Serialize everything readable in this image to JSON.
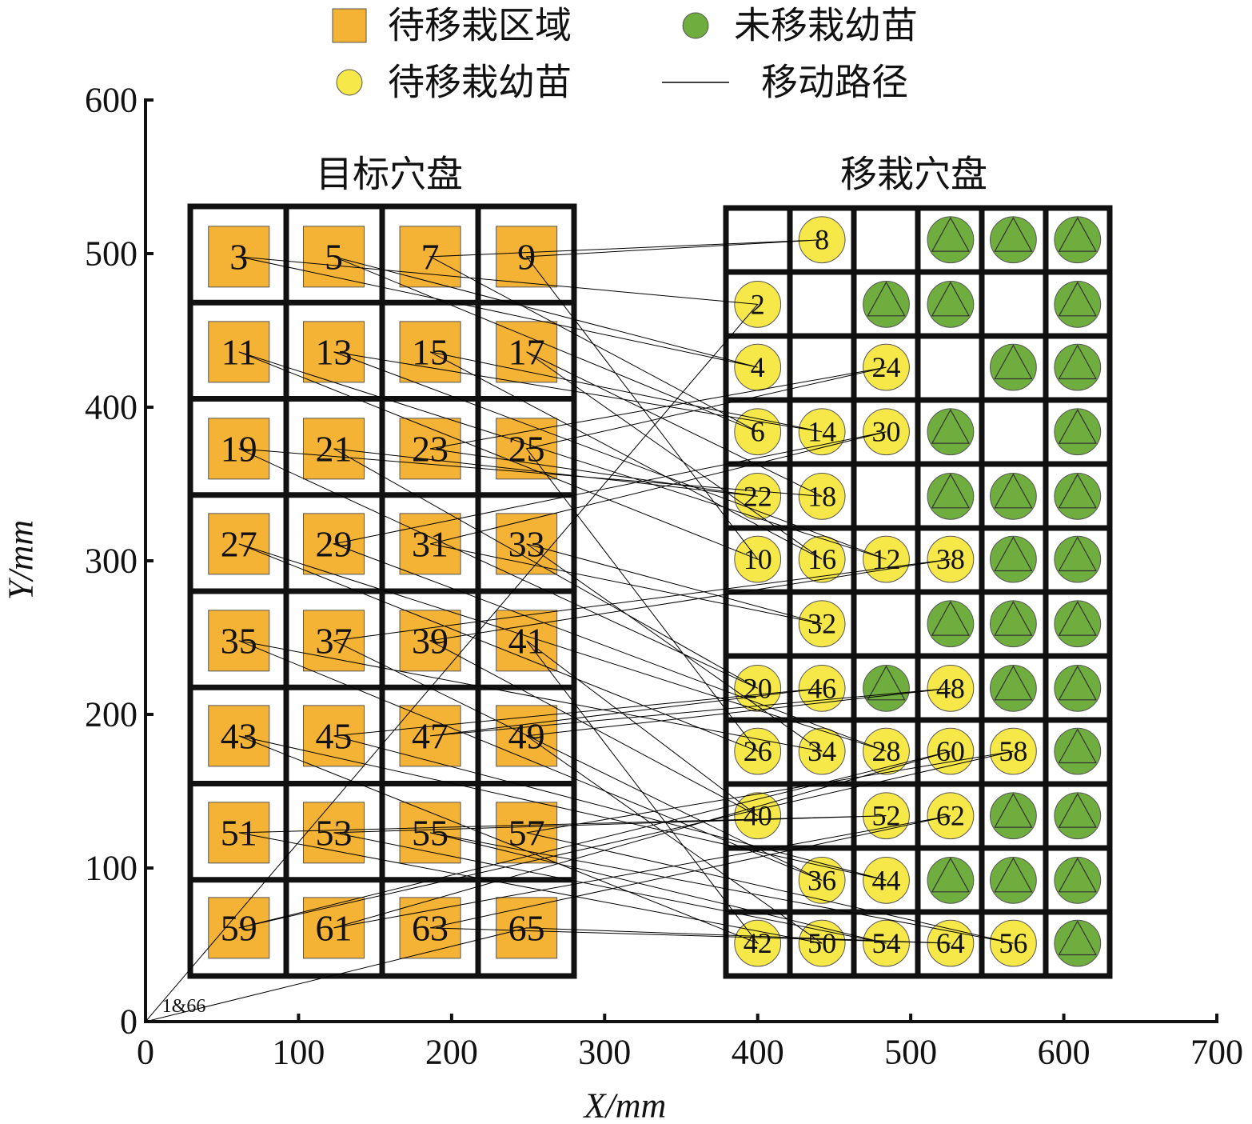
{
  "chart_data": {
    "type": "scatter",
    "xlabel": "X/mm",
    "ylabel": "Y/mm",
    "xlim": [
      0,
      700
    ],
    "xticks": [
      0,
      100,
      200,
      300,
      400,
      500,
      600,
      700
    ],
    "ylim": [
      0,
      600
    ],
    "yticks": [
      0,
      100,
      200,
      300,
      400,
      500,
      600
    ],
    "grid": false,
    "legend": "top",
    "annotations": [
      "目标穴盘",
      "移栽穴盘",
      "1&66"
    ],
    "series": [
      {
        "name": "待移栽区域",
        "marker": "square",
        "color": "#f5b335",
        "x": [
          61,
          123,
          186,
          249,
          61,
          123,
          186,
          249,
          61,
          123,
          186,
          249,
          61,
          123,
          186,
          249,
          61,
          123,
          186,
          249,
          61,
          123,
          186,
          249,
          61,
          123,
          186,
          249,
          61,
          123,
          186,
          249
        ],
        "y": [
          498,
          498,
          498,
          498,
          436,
          436,
          436,
          436,
          373,
          373,
          373,
          373,
          311,
          311,
          311,
          311,
          248,
          248,
          248,
          248,
          186,
          186,
          186,
          186,
          123,
          123,
          123,
          123,
          61,
          61,
          61,
          61
        ],
        "labels": [
          3,
          5,
          7,
          9,
          11,
          13,
          15,
          17,
          19,
          21,
          23,
          25,
          27,
          29,
          31,
          33,
          35,
          37,
          39,
          41,
          43,
          45,
          47,
          49,
          51,
          53,
          55,
          57,
          59,
          61,
          63,
          65
        ]
      },
      {
        "name": "未移栽幼苗",
        "marker": "circle-triangle",
        "color": "#70ad3f",
        "x": [
          526,
          567,
          609,
          484,
          526,
          609,
          567,
          609,
          526,
          609,
          526,
          567,
          609,
          567,
          609,
          526,
          567,
          609,
          484,
          567,
          609,
          609,
          567,
          609,
          526,
          567,
          609,
          609
        ],
        "y": [
          509,
          509,
          509,
          467,
          467,
          467,
          426,
          426,
          384,
          384,
          342,
          342,
          342,
          301,
          301,
          259,
          259,
          259,
          217,
          217,
          217,
          176,
          134,
          134,
          92,
          92,
          92,
          51
        ]
      },
      {
        "name": "待移栽幼苗",
        "marker": "circle",
        "color": "#f7e84a",
        "x": [
          442,
          400,
          400,
          484,
          400,
          442,
          484,
          400,
          442,
          400,
          442,
          484,
          526,
          442,
          400,
          442,
          526,
          400,
          442,
          484,
          526,
          567,
          400,
          484,
          526,
          442,
          484,
          400,
          442,
          484,
          526,
          567
        ],
        "y": [
          509,
          467,
          426,
          426,
          384,
          384,
          384,
          342,
          342,
          301,
          301,
          301,
          301,
          259,
          217,
          217,
          217,
          176,
          176,
          176,
          176,
          176,
          134,
          134,
          134,
          92,
          92,
          51,
          51,
          51,
          51,
          51
        ],
        "labels": [
          8,
          2,
          4,
          24,
          6,
          14,
          30,
          22,
          18,
          10,
          16,
          12,
          38,
          32,
          20,
          46,
          48,
          26,
          34,
          28,
          60,
          58,
          40,
          52,
          62,
          36,
          44,
          42,
          50,
          54,
          64,
          56
        ]
      },
      {
        "name": "移动路径",
        "marker": "line",
        "color": "#000000",
        "x": [
          0,
          400,
          61,
          400,
          123,
          400,
          186,
          442,
          249,
          400,
          61,
          484,
          123,
          442,
          186,
          442,
          249,
          442,
          61,
          400,
          123,
          400,
          186,
          484,
          249,
          400,
          61,
          484,
          123,
          484,
          186,
          442,
          249,
          442,
          61,
          442,
          123,
          526,
          186,
          400,
          249,
          400,
          61,
          484,
          123,
          442,
          186,
          526,
          249,
          442,
          61,
          484,
          123,
          484,
          186,
          567,
          249,
          567,
          61,
          526,
          123,
          526,
          186,
          526,
          249,
          0
        ],
        "y": [
          0,
          467,
          498,
          426,
          498,
          384,
          498,
          509,
          498,
          301,
          436,
          301,
          436,
          384,
          436,
          301,
          436,
          342,
          373,
          217,
          373,
          342,
          373,
          426,
          373,
          176,
          311,
          176,
          311,
          384,
          311,
          259,
          311,
          176,
          248,
          92,
          248,
          301,
          248,
          134,
          248,
          51,
          186,
          92,
          186,
          217,
          186,
          217,
          186,
          51,
          123,
          134,
          123,
          51,
          123,
          51,
          123,
          176,
          61,
          176,
          61,
          134,
          61,
          51,
          61,
          0
        ]
      }
    ]
  }
}
